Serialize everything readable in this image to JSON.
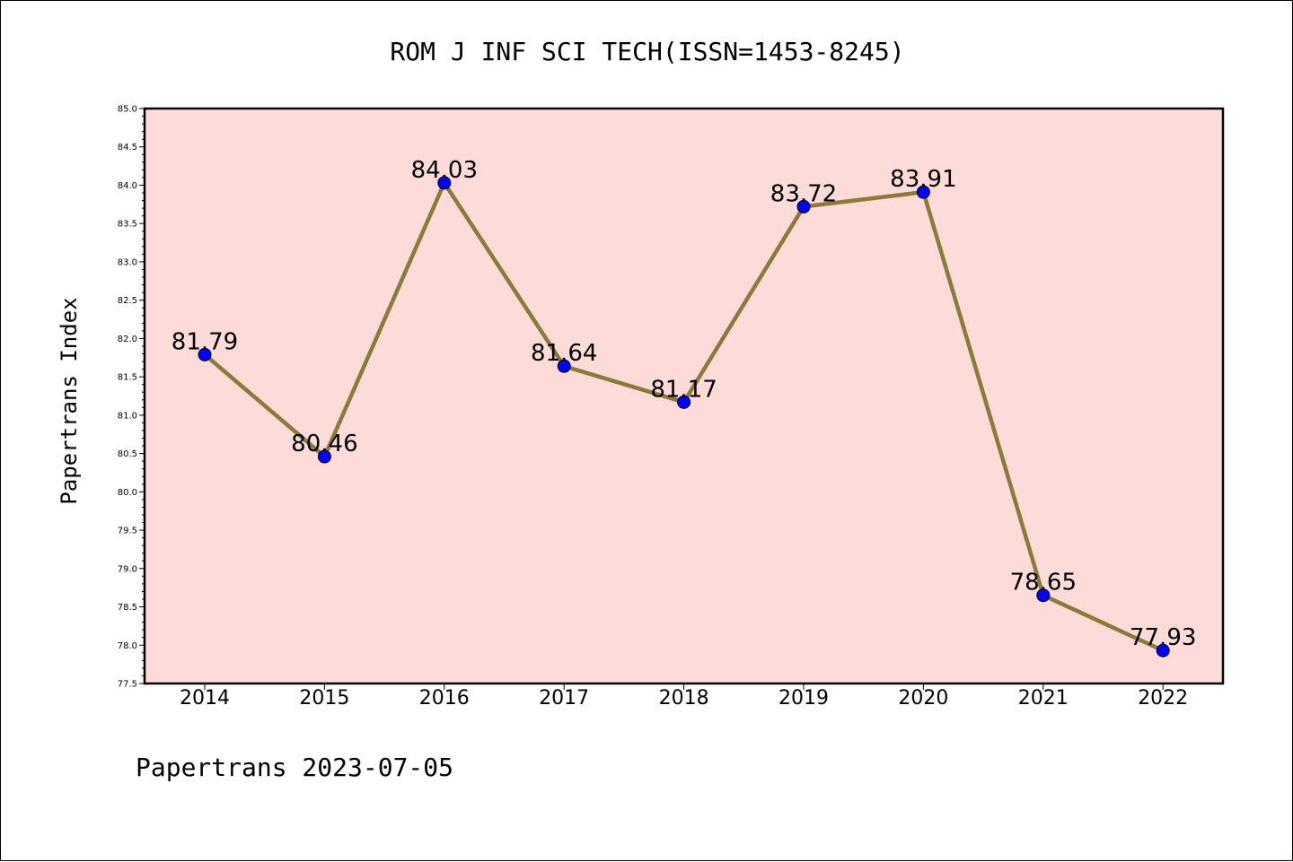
{
  "footer": "Papertrans 2023-07-05",
  "colors": {
    "plot_background": "#fddbd9",
    "line": "#8b7a3a",
    "marker": "#0000ff",
    "axis": "#000000"
  },
  "chart_data": {
    "type": "line",
    "title": "ROM J INF SCI TECH(ISSN=1453-8245)",
    "xlabel": "",
    "ylabel": "Papertrans Index",
    "categories": [
      "2014",
      "2015",
      "2016",
      "2017",
      "2018",
      "2019",
      "2020",
      "2021",
      "2022"
    ],
    "series": [
      {
        "values": [
          81.79,
          80.46,
          84.03,
          81.64,
          81.17,
          83.72,
          83.91,
          78.65,
          77.93
        ],
        "data_labels": [
          "81.79",
          "80.46",
          "84.03",
          "81.64",
          "81.17",
          "83.72",
          "83.91",
          "78.65",
          "77.93"
        ]
      }
    ],
    "ylim": [
      77.5,
      85.0
    ],
    "yticks": [
      "77.5",
      "78.0",
      "78.5",
      "79.0",
      "79.5",
      "80.0",
      "80.5",
      "81.0",
      "81.5",
      "82.0",
      "82.5",
      "83.0",
      "83.5",
      "84.0",
      "84.5",
      "85.0"
    ],
    "grid": false,
    "legend": "none"
  }
}
